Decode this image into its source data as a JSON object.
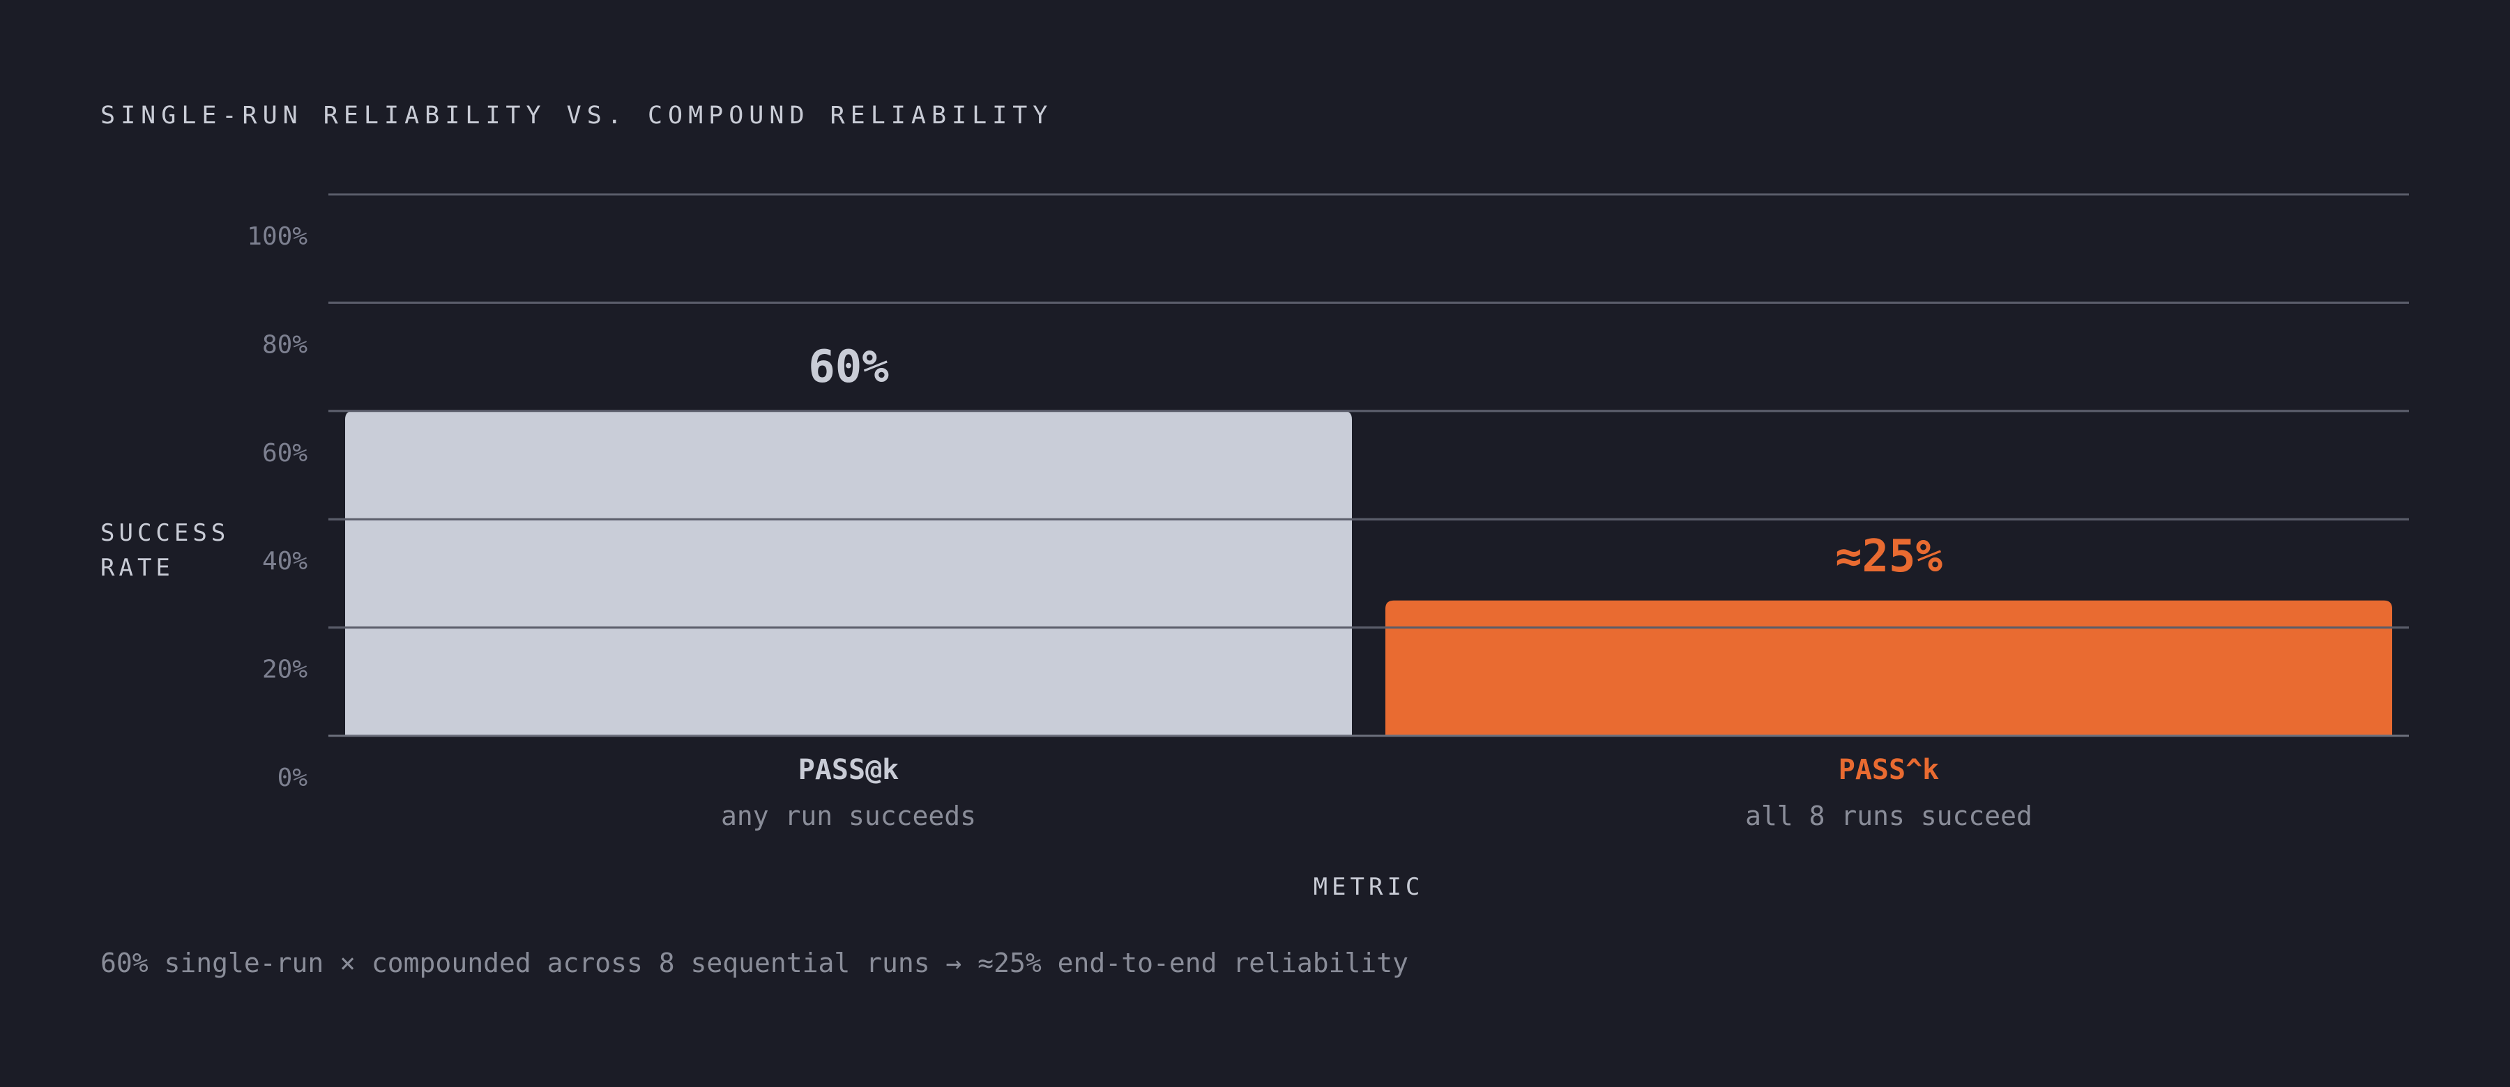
{
  "chart_data": {
    "type": "bar",
    "title": "SINGLE-RUN RELIABILITY VS. COMPOUND RELIABILITY",
    "ylabel_lines": [
      "SUCCESS",
      "RATE"
    ],
    "xlabel": "METRIC",
    "ylim": [
      0,
      100
    ],
    "yticks": [
      0,
      20,
      40,
      60,
      80,
      100
    ],
    "ytick_labels": [
      "0%",
      "20%",
      "40%",
      "60%",
      "80%",
      "100%"
    ],
    "grid": true,
    "categories": [
      "PASS@k",
      "PASS^k"
    ],
    "subtitles": [
      "any run succeeds",
      "all 8 runs succeed"
    ],
    "values": [
      60,
      25
    ],
    "value_labels": [
      "60%",
      "≈25%"
    ],
    "colors": [
      "#c9cdd8",
      "#e96b31"
    ],
    "label_colors": [
      "#c9ccd6",
      "#e96b31"
    ]
  },
  "caption": "60% single-run × compounded across 8 sequential runs → ≈25% end-to-end reliability"
}
